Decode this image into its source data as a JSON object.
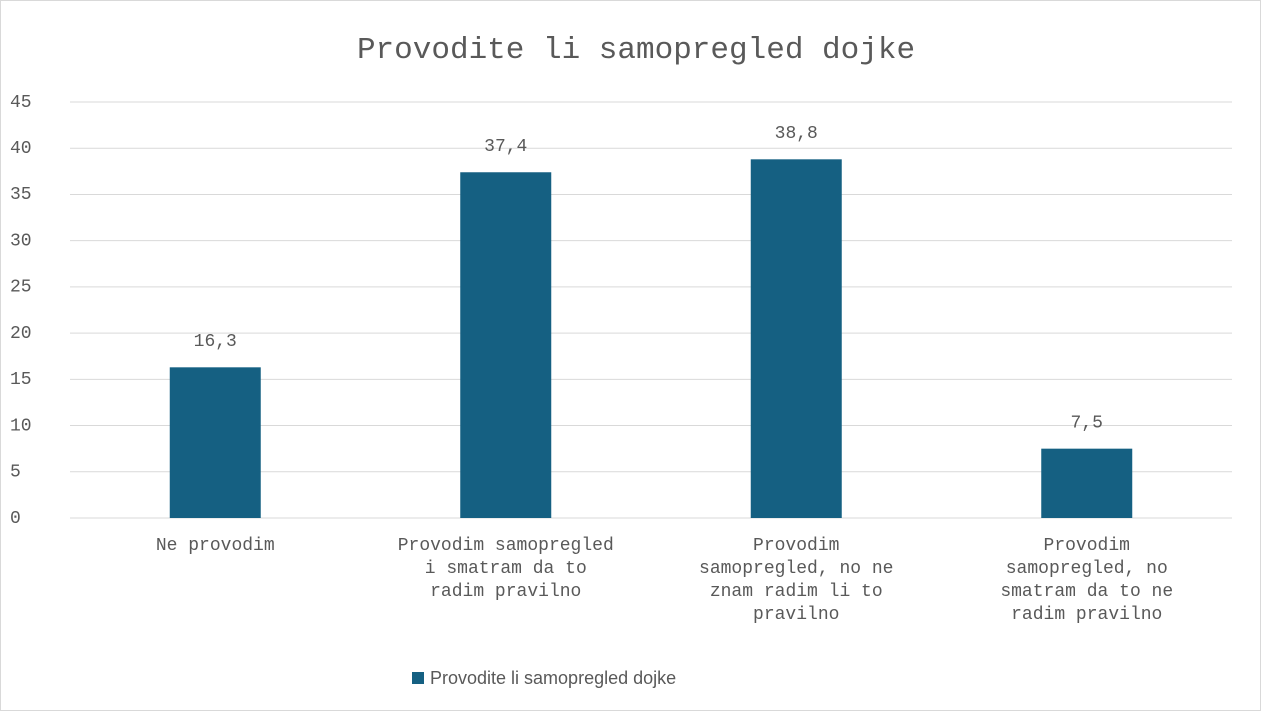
{
  "chart_data": {
    "type": "bar",
    "title": "Provodite li samopregled dojke",
    "categories": [
      "Ne provodim",
      "Provodim samopregled i smatram da to radim pravilno",
      "Provodim samopregled, no ne znam radim li to pravilno",
      "Provodim samopregled, no smatram da to ne radim pravilno"
    ],
    "series": [
      {
        "name": "Provodite li samopregled dojke",
        "color": "#156082",
        "values": [
          16.3,
          37.4,
          38.8,
          7.5
        ],
        "value_labels": [
          "16,3",
          "37,4",
          "38,8",
          "7,5"
        ]
      }
    ],
    "ylim": [
      0,
      45
    ],
    "yticks": [
      0,
      5,
      10,
      15,
      20,
      25,
      30,
      35,
      40,
      45
    ],
    "grid": true,
    "legend": "bottom"
  }
}
